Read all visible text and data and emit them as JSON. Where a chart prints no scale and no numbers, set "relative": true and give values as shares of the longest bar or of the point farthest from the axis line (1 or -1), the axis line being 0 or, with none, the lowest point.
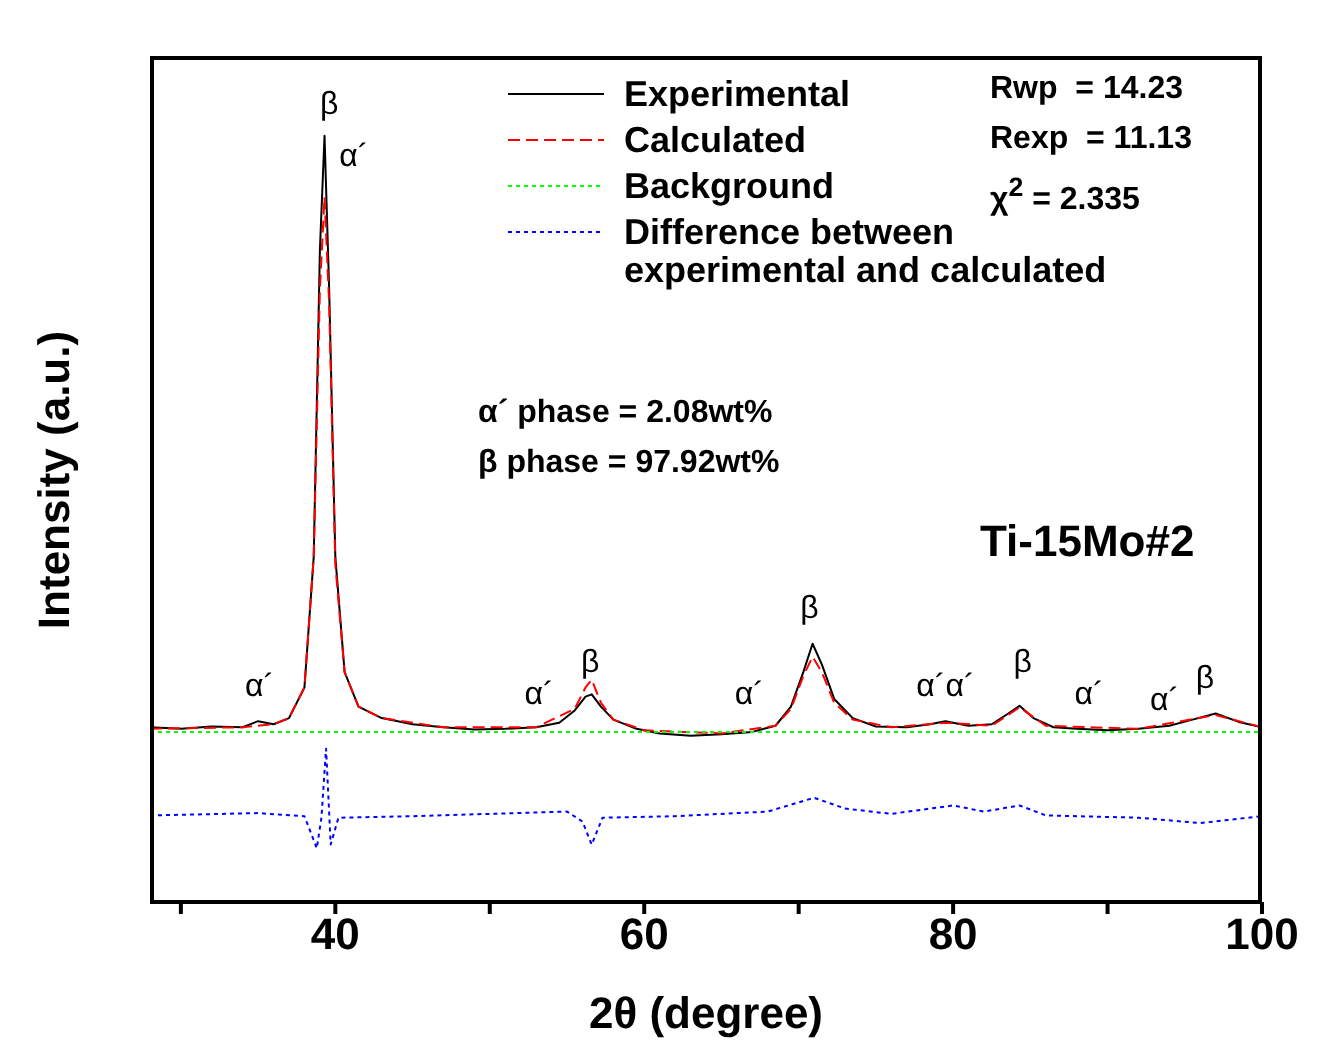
{
  "chart_data": {
    "type": "line",
    "relative": true,
    "xlabel": "2θ (degree)",
    "ylabel": "Intensity (a.u.)",
    "xlim": [
      28,
      100
    ],
    "xticks": [
      {
        "value": 30,
        "label": null
      },
      40,
      {
        "value": 50,
        "label": null
      },
      60,
      {
        "value": 70,
        "label": null
      },
      80,
      {
        "value": 90,
        "label": null
      },
      100
    ],
    "legend": "top",
    "marker": "none",
    "series": [
      {
        "name": "Experimental",
        "color": "#000000",
        "line_style": "solid",
        "x": [
          28,
          30,
          32,
          34,
          35,
          36,
          37,
          38,
          38.6,
          39,
          39.3,
          39.6,
          40,
          40.6,
          41.5,
          43,
          45,
          47,
          49,
          51,
          53,
          54.5,
          55.5,
          56.2,
          56.6,
          57.2,
          58,
          59.5,
          61,
          63,
          65,
          67,
          68.5,
          69.5,
          70.3,
          70.9,
          71.5,
          72.3,
          73.5,
          75,
          77,
          78.5,
          79.5,
          81,
          82.5,
          83.5,
          84.3,
          85.2,
          86.5,
          88,
          90,
          92,
          94,
          95.5,
          97,
          98.5,
          100
        ],
        "values": [
          0.228,
          0.226,
          0.229,
          0.228,
          0.236,
          0.232,
          0.24,
          0.28,
          0.45,
          0.85,
          1.0,
          0.8,
          0.45,
          0.3,
          0.255,
          0.24,
          0.232,
          0.228,
          0.225,
          0.226,
          0.228,
          0.234,
          0.25,
          0.268,
          0.271,
          0.255,
          0.238,
          0.226,
          0.22,
          0.217,
          0.219,
          0.222,
          0.23,
          0.255,
          0.3,
          0.337,
          0.31,
          0.265,
          0.24,
          0.229,
          0.228,
          0.232,
          0.236,
          0.23,
          0.232,
          0.245,
          0.256,
          0.24,
          0.228,
          0.226,
          0.224,
          0.226,
          0.23,
          0.238,
          0.246,
          0.235,
          0.228
        ]
      },
      {
        "name": "Calculated",
        "color": "#ff0000",
        "line_style": "dashed",
        "x": [
          28,
          34,
          36,
          37,
          38,
          38.6,
          39,
          39.3,
          39.6,
          40,
          40.6,
          41.5,
          43,
          47,
          53,
          55.5,
          56.2,
          56.6,
          57.2,
          58,
          60,
          65,
          68.5,
          69.5,
          70.3,
          70.9,
          71.5,
          72.3,
          73.5,
          76,
          79.5,
          82.5,
          84.3,
          86,
          92,
          97,
          100
        ],
        "values": [
          0.226,
          0.228,
          0.232,
          0.24,
          0.28,
          0.45,
          0.8,
          0.92,
          0.78,
          0.44,
          0.3,
          0.255,
          0.24,
          0.228,
          0.228,
          0.252,
          0.28,
          0.29,
          0.26,
          0.238,
          0.224,
          0.22,
          0.23,
          0.252,
          0.295,
          0.32,
          0.3,
          0.26,
          0.238,
          0.228,
          0.234,
          0.23,
          0.254,
          0.23,
          0.226,
          0.244,
          0.228
        ]
      },
      {
        "name": "Background",
        "color": "#00ff00",
        "line_style": "dotted",
        "x": [
          28,
          100
        ],
        "values": [
          0.222,
          0.222
        ]
      },
      {
        "name": "Difference between experimental and calculated",
        "color": "#0000ff",
        "line_style": "dotted",
        "x": [
          28,
          35,
          38,
          38.8,
          39.1,
          39.4,
          39.7,
          40.2,
          45,
          55,
          56,
          56.6,
          57.3,
          62,
          68,
          71,
          73,
          76,
          80,
          82,
          84.3,
          86,
          92,
          96,
          100
        ],
        "values": [
          0.113,
          0.116,
          0.112,
          0.07,
          0.11,
          0.2,
          0.075,
          0.11,
          0.112,
          0.118,
          0.105,
          0.075,
          0.11,
          0.112,
          0.118,
          0.136,
          0.122,
          0.115,
          0.126,
          0.118,
          0.126,
          0.113,
          0.11,
          0.103,
          0.112
        ]
      }
    ],
    "annotations": [
      "β",
      "α´",
      "α´",
      "α´",
      "β",
      "α´",
      "β",
      "α´α´",
      "β",
      "α´",
      "α´",
      "β",
      "Rwp  = 14.23",
      "Rexp  = 11.13",
      "χ$^{2}$ = 2.335",
      "α´ phase = 2.08wt%",
      "β phase = 97.92wt%",
      "Ti-15Mo#2"
    ]
  }
}
